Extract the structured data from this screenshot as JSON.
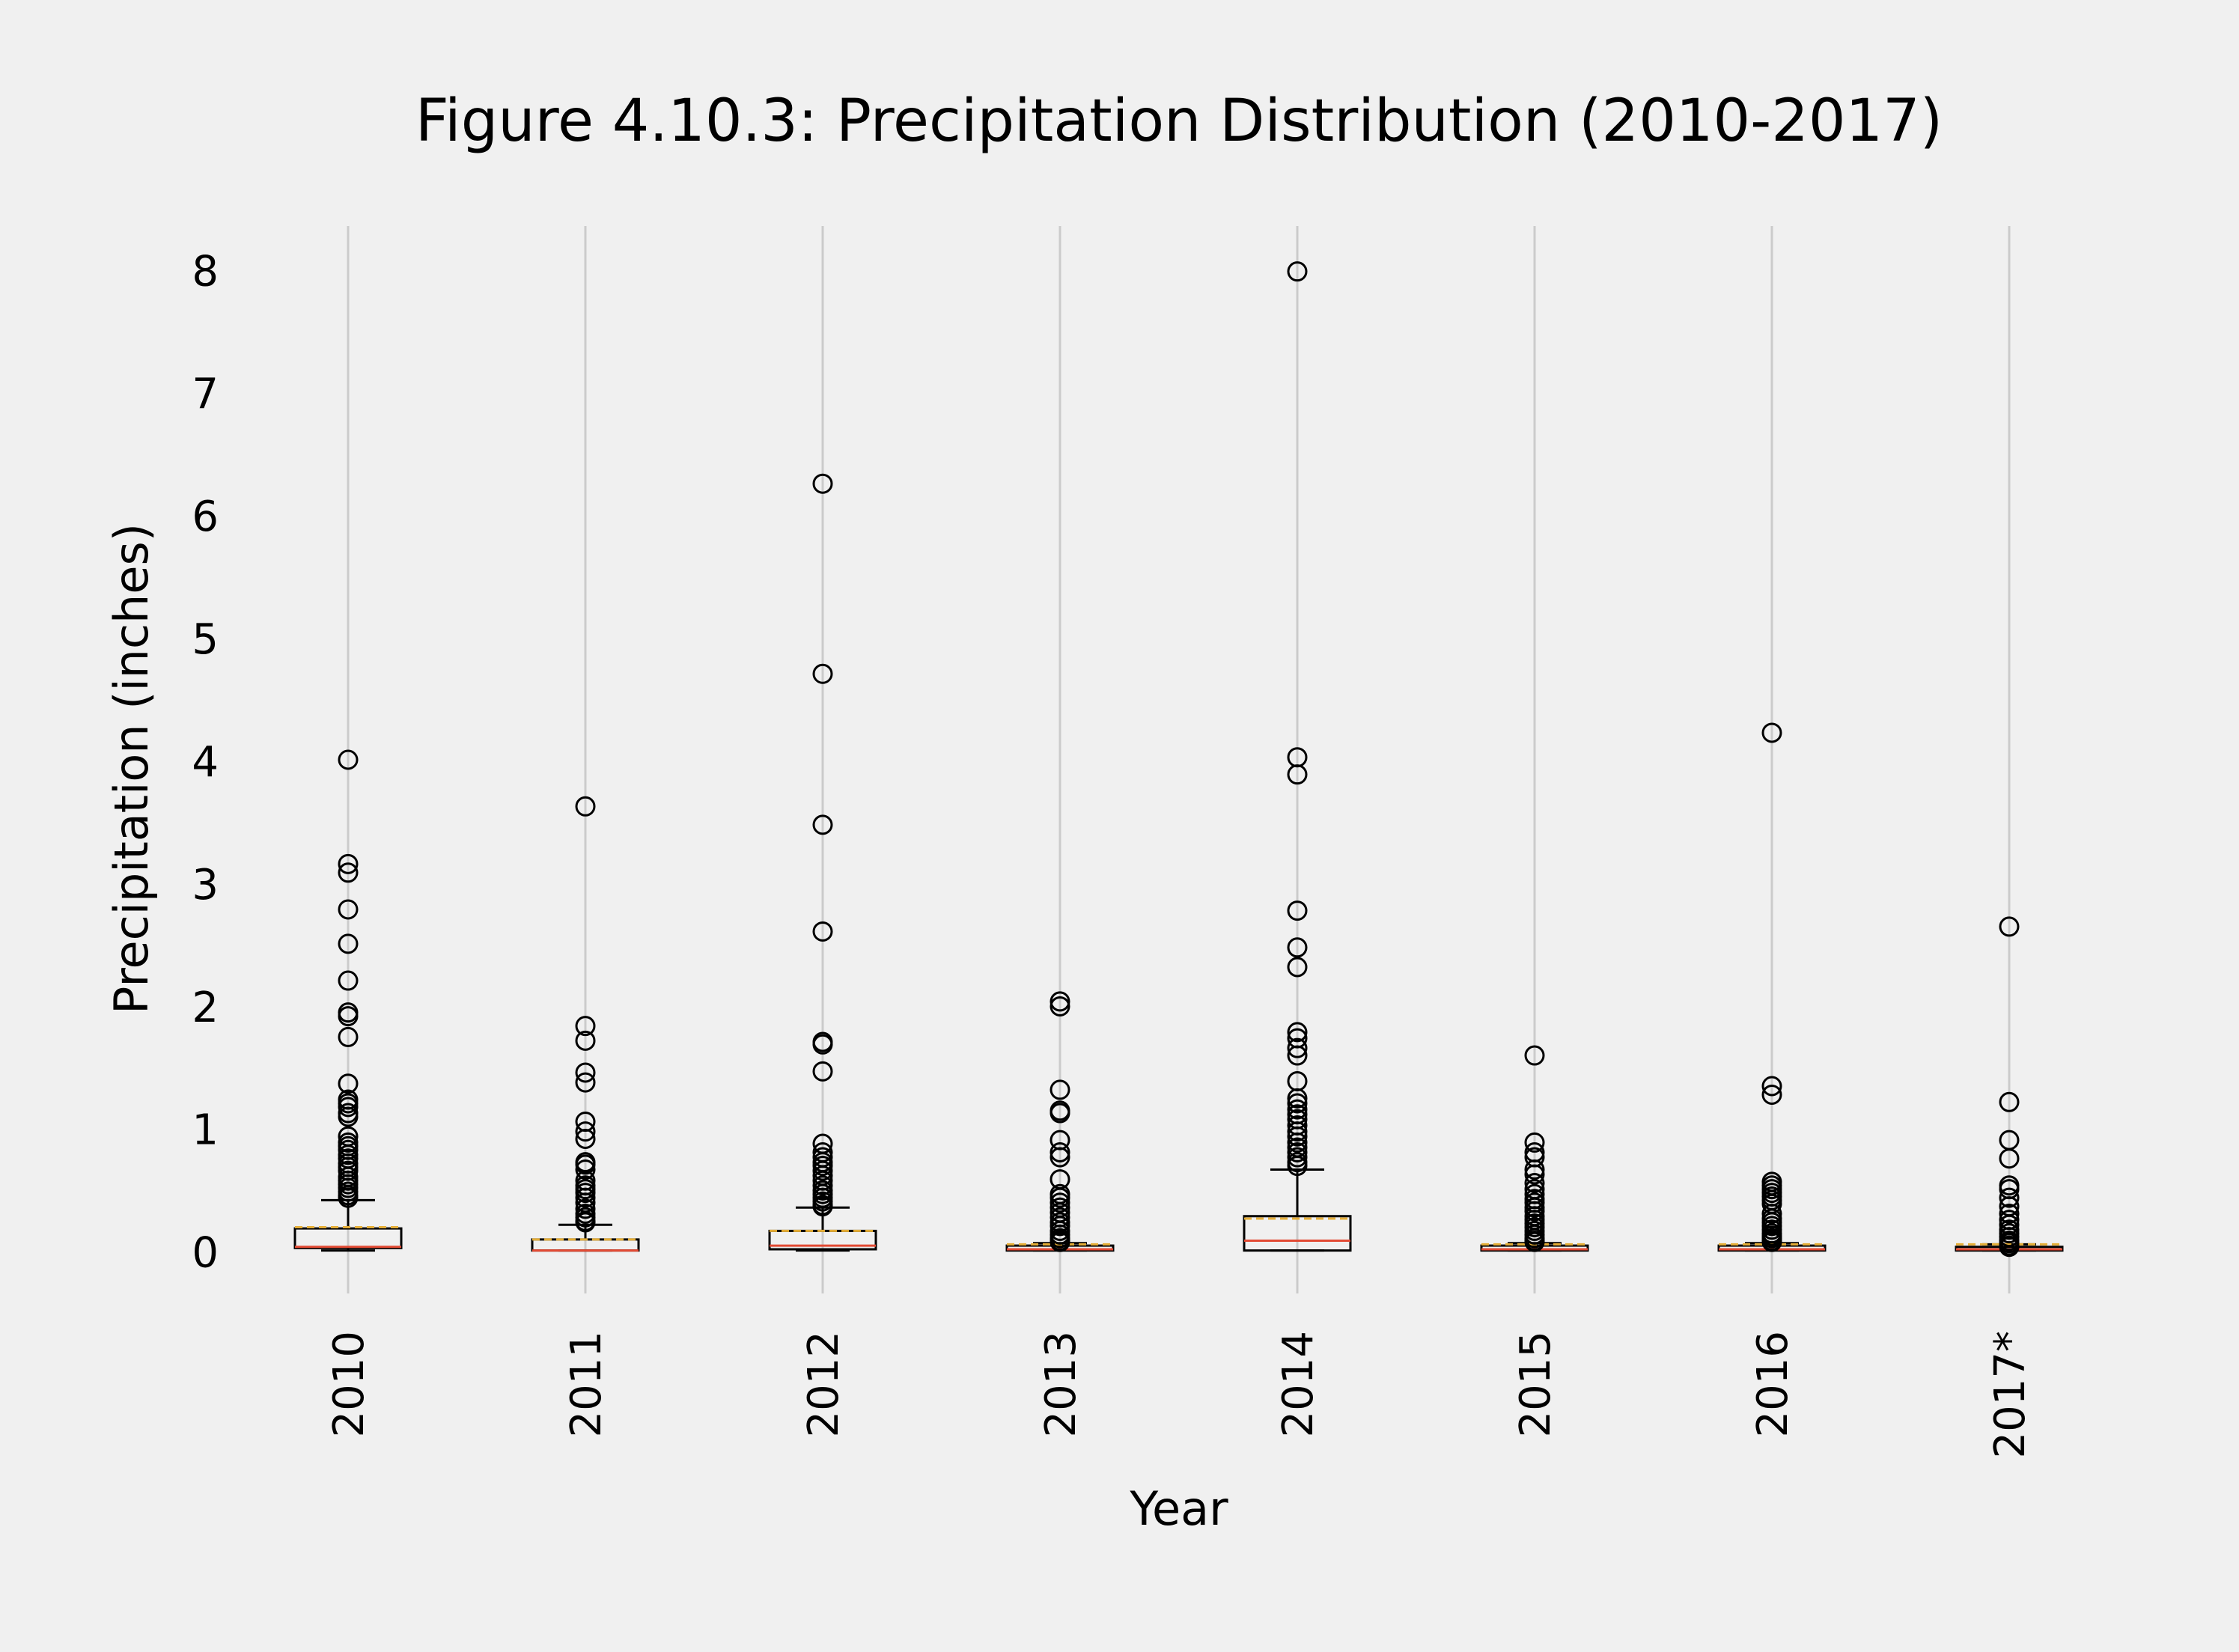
{
  "chart_data": {
    "type": "boxplot",
    "title": "Figure 4.10.3: Precipitation Distribution (2010-2017)",
    "xlabel": "Year",
    "ylabel": "Precipitation (inches)",
    "categories": [
      "2010",
      "2011",
      "2012",
      "2013",
      "2014",
      "2015",
      "2016",
      "2017*"
    ],
    "y_ticks": [
      0,
      1,
      2,
      3,
      4,
      5,
      6,
      7,
      8
    ],
    "ylim": [
      -0.35,
      8.35
    ],
    "grid": "vertical",
    "colors": {
      "background": "#f0f0f0",
      "grid": "#cbcbcb",
      "box": "#000000",
      "median": "#e24a33",
      "mean": "#e5ae38",
      "flier": "#000000"
    },
    "series": [
      {
        "category": "2010",
        "q1": 0.02,
        "median": 0.03,
        "q3": 0.18,
        "mean": 0.19,
        "whisker_low": 0.0,
        "whisker_high": 0.41,
        "outliers": [
          4.0,
          3.15,
          3.08,
          2.78,
          2.5,
          2.2,
          1.94,
          1.91,
          1.74,
          1.36,
          1.23,
          1.2,
          1.17,
          1.12,
          1.09,
          0.93,
          0.88,
          0.85,
          0.82,
          0.78,
          0.75,
          0.71,
          0.68,
          0.65,
          0.6,
          0.57,
          0.54,
          0.51,
          0.48,
          0.45,
          0.43
        ]
      },
      {
        "category": "2011",
        "q1": 0.0,
        "median": 0.0,
        "q3": 0.09,
        "mean": 0.09,
        "whisker_low": 0.0,
        "whisker_high": 0.21,
        "outliers": [
          3.62,
          1.83,
          1.71,
          1.45,
          1.37,
          1.05,
          0.97,
          0.91,
          0.72,
          0.7,
          0.66,
          0.57,
          0.53,
          0.5,
          0.47,
          0.43,
          0.39,
          0.34,
          0.3,
          0.27,
          0.24,
          0.23
        ]
      },
      {
        "category": "2012",
        "q1": 0.01,
        "median": 0.04,
        "q3": 0.16,
        "mean": 0.16,
        "whisker_low": 0.0,
        "whisker_high": 0.35,
        "outliers": [
          6.25,
          4.7,
          3.47,
          2.6,
          1.7,
          1.68,
          1.46,
          0.87,
          0.8,
          0.76,
          0.72,
          0.69,
          0.65,
          0.61,
          0.57,
          0.53,
          0.49,
          0.46,
          0.43,
          0.4,
          0.37,
          0.36
        ]
      },
      {
        "category": "2013",
        "q1": 0.0,
        "median": 0.01,
        "q3": 0.04,
        "mean": 0.05,
        "whisker_low": 0.0,
        "whisker_high": 0.06,
        "outliers": [
          2.03,
          1.99,
          1.31,
          1.14,
          1.12,
          0.9,
          0.8,
          0.76,
          0.58,
          0.46,
          0.43,
          0.39,
          0.35,
          0.31,
          0.27,
          0.23,
          0.2,
          0.16,
          0.13,
          0.1,
          0.08,
          0.07
        ]
      },
      {
        "category": "2014",
        "q1": 0.0,
        "median": 0.08,
        "q3": 0.28,
        "mean": 0.26,
        "whisker_low": 0.0,
        "whisker_high": 0.66,
        "outliers": [
          7.98,
          4.02,
          3.88,
          2.77,
          2.47,
          2.31,
          1.78,
          1.73,
          1.65,
          1.59,
          1.38,
          1.24,
          1.2,
          1.15,
          1.11,
          1.07,
          1.02,
          0.97,
          0.93,
          0.88,
          0.84,
          0.8,
          0.76,
          0.72,
          0.69
        ]
      },
      {
        "category": "2015",
        "q1": 0.0,
        "median": 0.01,
        "q3": 0.04,
        "mean": 0.05,
        "whisker_low": 0.0,
        "whisker_high": 0.06,
        "outliers": [
          1.59,
          0.88,
          0.8,
          0.76,
          0.66,
          0.62,
          0.55,
          0.5,
          0.46,
          0.42,
          0.39,
          0.35,
          0.32,
          0.28,
          0.25,
          0.22,
          0.19,
          0.16,
          0.13,
          0.1,
          0.08,
          0.07
        ]
      },
      {
        "category": "2016",
        "q1": 0.0,
        "median": 0.01,
        "q3": 0.04,
        "mean": 0.05,
        "whisker_low": 0.0,
        "whisker_high": 0.06,
        "outliers": [
          4.22,
          1.34,
          1.27,
          0.56,
          0.53,
          0.5,
          0.47,
          0.44,
          0.41,
          0.38,
          0.3,
          0.26,
          0.23,
          0.2,
          0.17,
          0.14,
          0.12,
          0.1,
          0.08,
          0.07
        ]
      },
      {
        "category": "2017*",
        "q1": 0.0,
        "median": 0.01,
        "q3": 0.03,
        "mean": 0.05,
        "whisker_low": 0.0,
        "whisker_high": 0.05,
        "outliers": [
          2.64,
          1.21,
          0.9,
          0.75,
          0.53,
          0.5,
          0.43,
          0.36,
          0.3,
          0.25,
          0.21,
          0.17,
          0.14,
          0.11,
          0.08,
          0.06,
          0.04,
          0.03
        ]
      }
    ]
  }
}
